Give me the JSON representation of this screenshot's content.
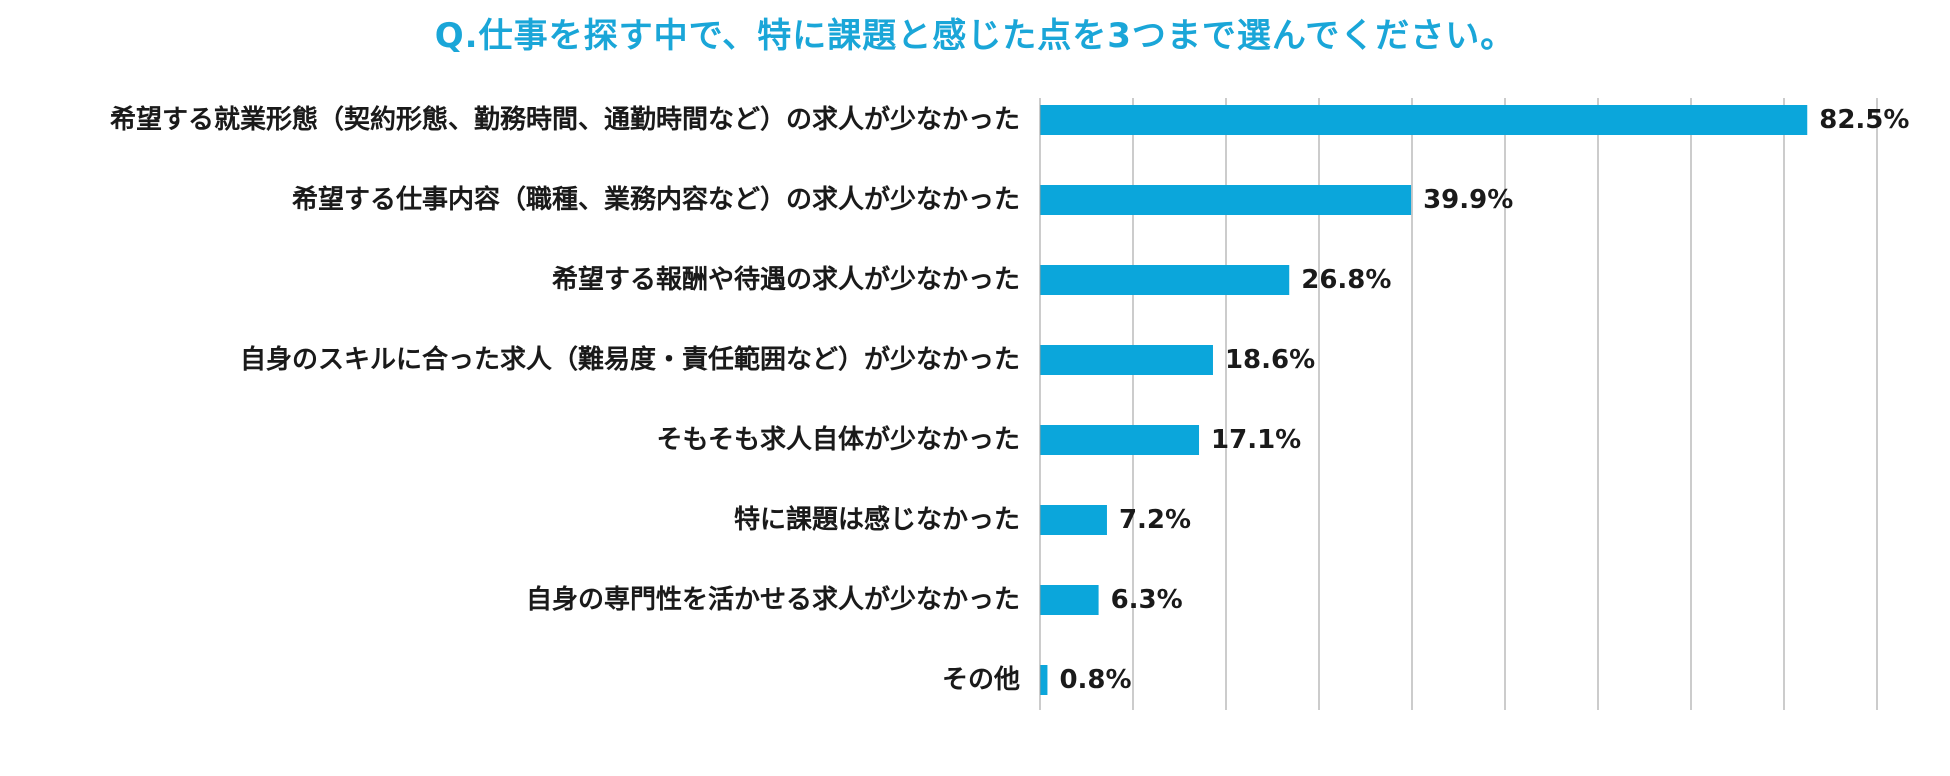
{
  "chart_data": {
    "type": "bar",
    "orientation": "horizontal",
    "title": "Q.仕事を探す中で、特に課題と感じた点を3つまで選んでください。",
    "categories": [
      "希望する就業形態（契約形態、勤務時間、通勤時間など）の求人が少なかった",
      "希望する仕事内容（職種、業務内容など）の求人が少なかった",
      "希望する報酬や待遇の求人が少なかった",
      "自身のスキルに合った求人（難易度・責任範囲など）が少なかった",
      "そもそも求人自体が少なかった",
      "特に課題は感じなかった",
      "自身の専門性を活かせる求人が少なかった",
      "その他"
    ],
    "values": [
      82.5,
      39.9,
      26.8,
      18.6,
      17.1,
      7.2,
      6.3,
      0.8
    ],
    "value_labels": [
      "82.5%",
      "39.9%",
      "26.8%",
      "18.6%",
      "17.1%",
      "7.2%",
      "6.3%",
      "0.8%"
    ],
    "xlim": [
      0,
      90
    ],
    "grid": true,
    "bar_color": "#0ba6db",
    "grid_color": "#9a9a9a",
    "title_color": "#1aa6d8"
  }
}
